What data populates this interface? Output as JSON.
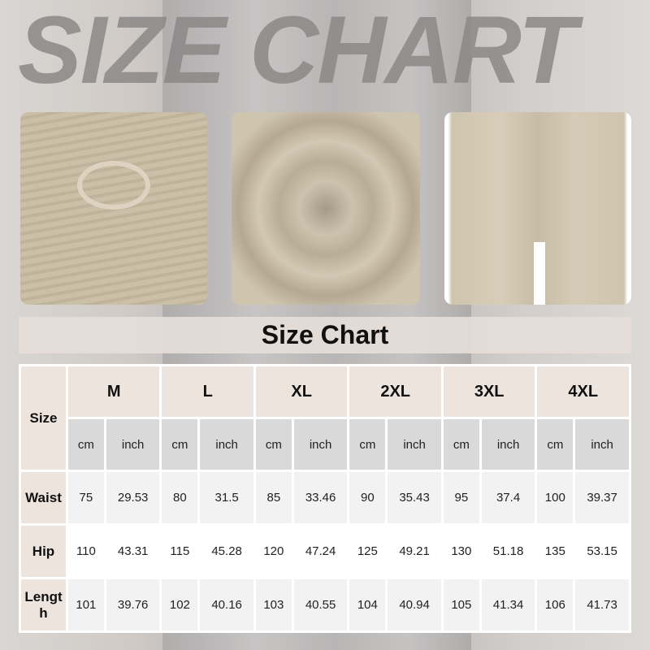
{
  "title": "SIZE CHART",
  "banner": "Size Chart",
  "table": {
    "corner": "Size",
    "sizes": [
      "M",
      "L",
      "XL",
      "2XL",
      "3XL",
      "4XL"
    ],
    "units": [
      "cm",
      "inch"
    ],
    "rows": [
      {
        "label": "Waist",
        "values": [
          "75",
          "29.53",
          "80",
          "31.5",
          "85",
          "33.46",
          "90",
          "35.43",
          "95",
          "37.4",
          "100",
          "39.37"
        ]
      },
      {
        "label": "Hip",
        "values": [
          "110",
          "43.31",
          "115",
          "45.28",
          "120",
          "47.24",
          "125",
          "49.21",
          "130",
          "51.18",
          "135",
          "53.15"
        ]
      },
      {
        "label": "Lengt h",
        "values": [
          "101",
          "39.76",
          "102",
          "40.16",
          "103",
          "40.55",
          "104",
          "40.94",
          "105",
          "41.34",
          "106",
          "41.73"
        ]
      }
    ]
  }
}
